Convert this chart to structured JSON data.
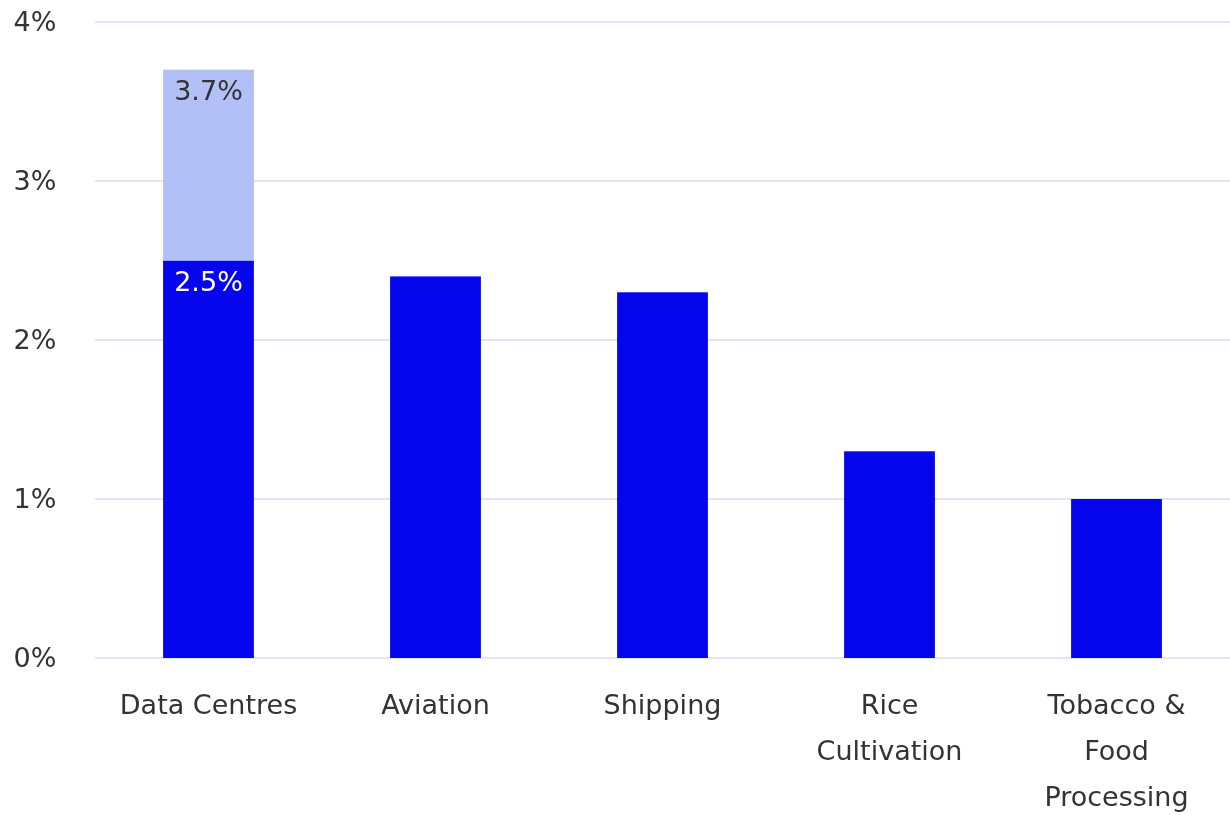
{
  "chart_data": {
    "type": "bar",
    "stacked": true,
    "categories": [
      "Data Centres",
      "Aviation",
      "Shipping",
      "Rice Cultivation",
      "Tobacco & Food Processing"
    ],
    "series": [
      {
        "color": "#0505ee",
        "values": [
          2.5,
          2.4,
          2.3,
          1.3,
          1.0
        ],
        "value_labels": [
          "2.5%",
          null,
          null,
          null,
          null
        ]
      },
      {
        "color": "#b3bff7",
        "values": [
          1.2,
          null,
          null,
          null,
          null
        ]
      }
    ],
    "totals": [
      "3.7%",
      null,
      null,
      null,
      null
    ],
    "ylim": [
      0,
      4
    ],
    "yticks": [
      {
        "value": 0,
        "label": "0%"
      },
      {
        "value": 1,
        "label": "1%"
      },
      {
        "value": 2,
        "label": "2%"
      },
      {
        "value": 3,
        "label": "3%"
      },
      {
        "value": 4,
        "label": "4%"
      }
    ],
    "grid": "y"
  }
}
